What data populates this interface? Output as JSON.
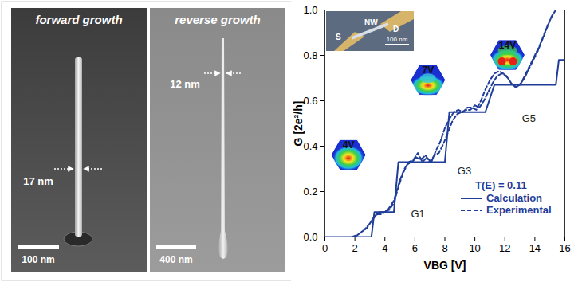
{
  "panels": [
    {
      "title": "forward growth",
      "width_label": "17 nm",
      "scale_bar": "100 nm"
    },
    {
      "title": "reverse growth",
      "width_label": "12 nm",
      "scale_bar": "400 nm"
    }
  ],
  "chart_data": {
    "type": "line",
    "xlabel": "VBG [V]",
    "ylabel": "G [2e²/h]",
    "xlim": [
      0,
      16
    ],
    "xticks": [
      0,
      2,
      4,
      6,
      8,
      10,
      12,
      14,
      16
    ],
    "ylim": [
      0,
      1
    ],
    "yticks": [
      {
        "value": 0,
        "label": "0.0"
      },
      0.2,
      0.4,
      0.6,
      0.8,
      {
        "value": 1,
        "label": "1.0"
      }
    ],
    "legend": "lower right",
    "legend_title": "T(E) = 0.11",
    "series": [
      {
        "name": "Calculation",
        "color": "#1f3d99",
        "line_style": "solid",
        "x": [
          0,
          3.1,
          3.3,
          4.6,
          4.9,
          8.0,
          8.3,
          10.7,
          11.3,
          15.4,
          15.6,
          16
        ],
        "values": [
          0,
          0,
          0.11,
          0.11,
          0.33,
          0.33,
          0.55,
          0.55,
          0.67,
          0.67,
          0.78,
          0.78
        ]
      },
      {
        "name": "Experimental",
        "color": "#1f3d99",
        "line_style": "dashed",
        "x": [
          1.8,
          2.2,
          2.6,
          3.0,
          3.3,
          3.6,
          3.9,
          4.3,
          4.6,
          4.9,
          5.2,
          5.5,
          5.8,
          6.1,
          6.4,
          6.7,
          7.0,
          7.3,
          7.6,
          7.9,
          8.2,
          8.5,
          8.8,
          9.1,
          9.4,
          9.7,
          10.0,
          10.3,
          10.6,
          10.9,
          11.2,
          11.5,
          11.8,
          12.1,
          12.4,
          12.7,
          13.0,
          13.3,
          13.6,
          13.9,
          14.2,
          14.5,
          14.8,
          15.1,
          15.4,
          null,
          2.0,
          2.4,
          2.8,
          3.2,
          3.5,
          3.8,
          4.2,
          4.6,
          5.0,
          5.3,
          5.6,
          5.9,
          6.2,
          6.5,
          6.8,
          7.1,
          7.4,
          7.7,
          8.0,
          8.3,
          8.6,
          8.9,
          9.2,
          9.5,
          9.8,
          10.1,
          10.4,
          10.7,
          11.0,
          11.3,
          11.6,
          11.9,
          12.2,
          12.5,
          12.8,
          13.1,
          13.4,
          13.7,
          14.0,
          14.3,
          14.6,
          14.9,
          15.2
        ],
        "values": [
          0,
          0.01,
          0.03,
          0.06,
          0.09,
          0.11,
          0.11,
          0.12,
          0.15,
          0.22,
          0.28,
          0.32,
          0.33,
          0.35,
          0.34,
          0.36,
          0.33,
          0.36,
          0.37,
          0.41,
          0.46,
          0.51,
          0.54,
          0.55,
          0.56,
          0.56,
          0.58,
          0.57,
          0.6,
          0.64,
          0.68,
          0.71,
          0.72,
          0.71,
          0.68,
          0.66,
          0.67,
          0.7,
          0.74,
          0.78,
          0.82,
          0.87,
          0.92,
          0.97,
          1.0,
          null,
          0,
          0.02,
          0.04,
          0.08,
          0.1,
          0.1,
          0.12,
          0.16,
          0.25,
          0.3,
          0.33,
          0.34,
          0.37,
          0.33,
          0.35,
          0.33,
          0.38,
          0.42,
          0.48,
          0.52,
          0.55,
          0.56,
          0.55,
          0.57,
          0.57,
          0.56,
          0.6,
          0.65,
          0.69,
          0.72,
          0.73,
          0.72,
          0.7,
          0.67,
          0.66,
          0.68,
          0.72,
          0.76,
          0.8,
          0.84,
          0.89,
          0.94,
          0.98
        ]
      }
    ],
    "annotations": [
      {
        "text": "G1",
        "x": 6.2,
        "y": 0.1
      },
      {
        "text": "G3",
        "x": 9.3,
        "y": 0.29
      },
      {
        "text": "G5",
        "x": 13.6,
        "y": 0.52
      }
    ],
    "insets": [
      {
        "label": "4V",
        "x": 1.6,
        "y": 0.36
      },
      {
        "label": "7V",
        "x": 6.9,
        "y": 0.69
      },
      {
        "label": "14V",
        "x": 12.2,
        "y": 0.8
      }
    ],
    "photo_inset": {
      "labels": [
        "S",
        "NW",
        "D"
      ],
      "scale_bar": "100 nm"
    }
  }
}
